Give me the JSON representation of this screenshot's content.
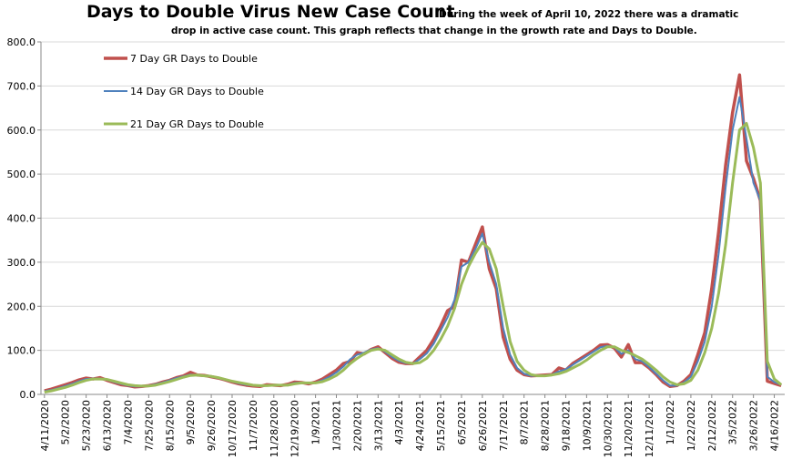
{
  "chart_data": {
    "type": "line",
    "title": "Days to Double Virus New Case Count",
    "annotation": [
      "During the week of April 10, 2022 there was a dramatic",
      "drop in active case count.  This graph reflects that change in the growth rate and Days to Double."
    ],
    "categories": [
      "4/11/2020",
      null,
      null,
      "5/2/2020",
      null,
      null,
      "5/23/2020",
      null,
      null,
      "6/13/2020",
      null,
      null,
      "7/4/2020",
      null,
      null,
      "7/25/2020",
      null,
      null,
      "8/15/2020",
      null,
      null,
      "9/5/2020",
      null,
      null,
      "9/26/2020",
      null,
      null,
      "10/17/2020",
      null,
      null,
      "11/7/2020",
      null,
      null,
      "11/28/2020",
      null,
      null,
      "12/19/2020",
      null,
      null,
      "1/9/2021",
      null,
      null,
      "1/30/2021",
      null,
      null,
      "2/20/2021",
      null,
      null,
      "3/13/2021",
      null,
      null,
      "4/3/2021",
      null,
      null,
      "4/24/2021",
      null,
      null,
      "5/15/2021",
      null,
      null,
      "6/5/2021",
      null,
      null,
      "6/26/2021",
      null,
      null,
      "7/17/2021",
      null,
      null,
      "8/7/2021",
      null,
      null,
      "8/28/2021",
      null,
      null,
      "9/18/2021",
      null,
      null,
      "10/9/2021",
      null,
      null,
      "10/30/2021",
      null,
      null,
      "11/20/2021",
      null,
      null,
      "12/11/2021",
      null,
      null,
      "1/1/2022",
      null,
      null,
      "1/22/2022",
      null,
      null,
      "2/12/2022",
      null,
      null,
      "3/5/2022",
      null,
      null,
      "3/26/2022",
      null,
      null,
      "4/16/2022",
      null
    ],
    "series": [
      {
        "name": "7 Day GR Days to Double",
        "color": "#c0504d",
        "width": 3.5,
        "values": [
          8,
          12,
          17,
          22,
          27,
          33,
          37,
          35,
          38,
          32,
          27,
          22,
          20,
          17,
          18,
          20,
          23,
          28,
          32,
          38,
          42,
          50,
          44,
          43,
          40,
          37,
          33,
          28,
          24,
          21,
          19,
          18,
          22,
          21,
          20,
          23,
          28,
          27,
          24,
          28,
          35,
          45,
          55,
          70,
          75,
          95,
          92,
          102,
          108,
          95,
          82,
          73,
          70,
          70,
          85,
          100,
          125,
          155,
          190,
          200,
          305,
          300,
          340,
          380,
          285,
          240,
          130,
          80,
          55,
          45,
          42,
          43,
          44,
          45,
          60,
          55,
          70,
          80,
          90,
          100,
          112,
          113,
          105,
          85,
          113,
          72,
          72,
          60,
          45,
          28,
          18,
          20,
          30,
          45,
          90,
          140,
          240,
          370,
          520,
          640,
          725,
          530,
          490,
          440,
          30,
          25,
          20
        ]
      },
      {
        "name": "14 Day GR Days to Double",
        "color": "#4f81bd",
        "width": 2,
        "values": [
          7,
          10,
          14,
          19,
          24,
          30,
          35,
          36,
          36,
          33,
          28,
          24,
          20,
          18,
          18,
          20,
          23,
          27,
          32,
          37,
          41,
          45,
          44,
          42,
          40,
          37,
          33,
          29,
          25,
          22,
          20,
          19,
          20,
          21,
          21,
          22,
          26,
          27,
          25,
          27,
          32,
          40,
          50,
          63,
          80,
          90,
          95,
          102,
          105,
          97,
          85,
          76,
          71,
          70,
          80,
          93,
          115,
          145,
          175,
          215,
          290,
          300,
          330,
          365,
          300,
          250,
          150,
          90,
          60,
          47,
          42,
          42,
          43,
          45,
          52,
          57,
          67,
          77,
          87,
          97,
          107,
          110,
          107,
          92,
          100,
          80,
          75,
          62,
          47,
          32,
          20,
          20,
          27,
          40,
          75,
          120,
          200,
          320,
          470,
          600,
          675,
          580,
          480,
          440,
          40,
          28,
          22
        ]
      },
      {
        "name": "21 Day GR Days to Double",
        "color": "#9bbb59",
        "width": 3,
        "values": [
          5,
          8,
          12,
          16,
          21,
          27,
          32,
          35,
          35,
          34,
          30,
          26,
          22,
          20,
          19,
          19,
          21,
          25,
          29,
          34,
          39,
          43,
          44,
          42,
          41,
          38,
          34,
          30,
          27,
          24,
          21,
          20,
          20,
          21,
          21,
          21,
          24,
          26,
          26,
          26,
          29,
          35,
          43,
          55,
          70,
          82,
          92,
          100,
          103,
          100,
          90,
          80,
          73,
          70,
          72,
          82,
          100,
          125,
          155,
          195,
          250,
          290,
          320,
          345,
          330,
          285,
          200,
          120,
          75,
          55,
          45,
          42,
          42,
          44,
          47,
          52,
          60,
          68,
          78,
          90,
          100,
          108,
          108,
          100,
          95,
          88,
          80,
          68,
          55,
          40,
          28,
          22,
          24,
          32,
          55,
          95,
          150,
          230,
          340,
          480,
          600,
          615,
          560,
          480,
          75,
          35,
          22
        ]
      }
    ],
    "ylim": [
      0,
      800
    ],
    "yticks": [
      {
        "value": 0,
        "label": "0.0"
      },
      {
        "value": 100,
        "label": "100.0"
      },
      {
        "value": 200,
        "label": "200.0"
      },
      {
        "value": 300,
        "label": "300.0"
      },
      {
        "value": 400,
        "label": "400.0"
      },
      {
        "value": 500,
        "label": "500.0"
      },
      {
        "value": 600,
        "label": "600.0"
      },
      {
        "value": 700,
        "label": "700.0"
      },
      {
        "value": 800,
        "label": "800.0"
      }
    ],
    "grid": true,
    "legend": "top-left"
  }
}
